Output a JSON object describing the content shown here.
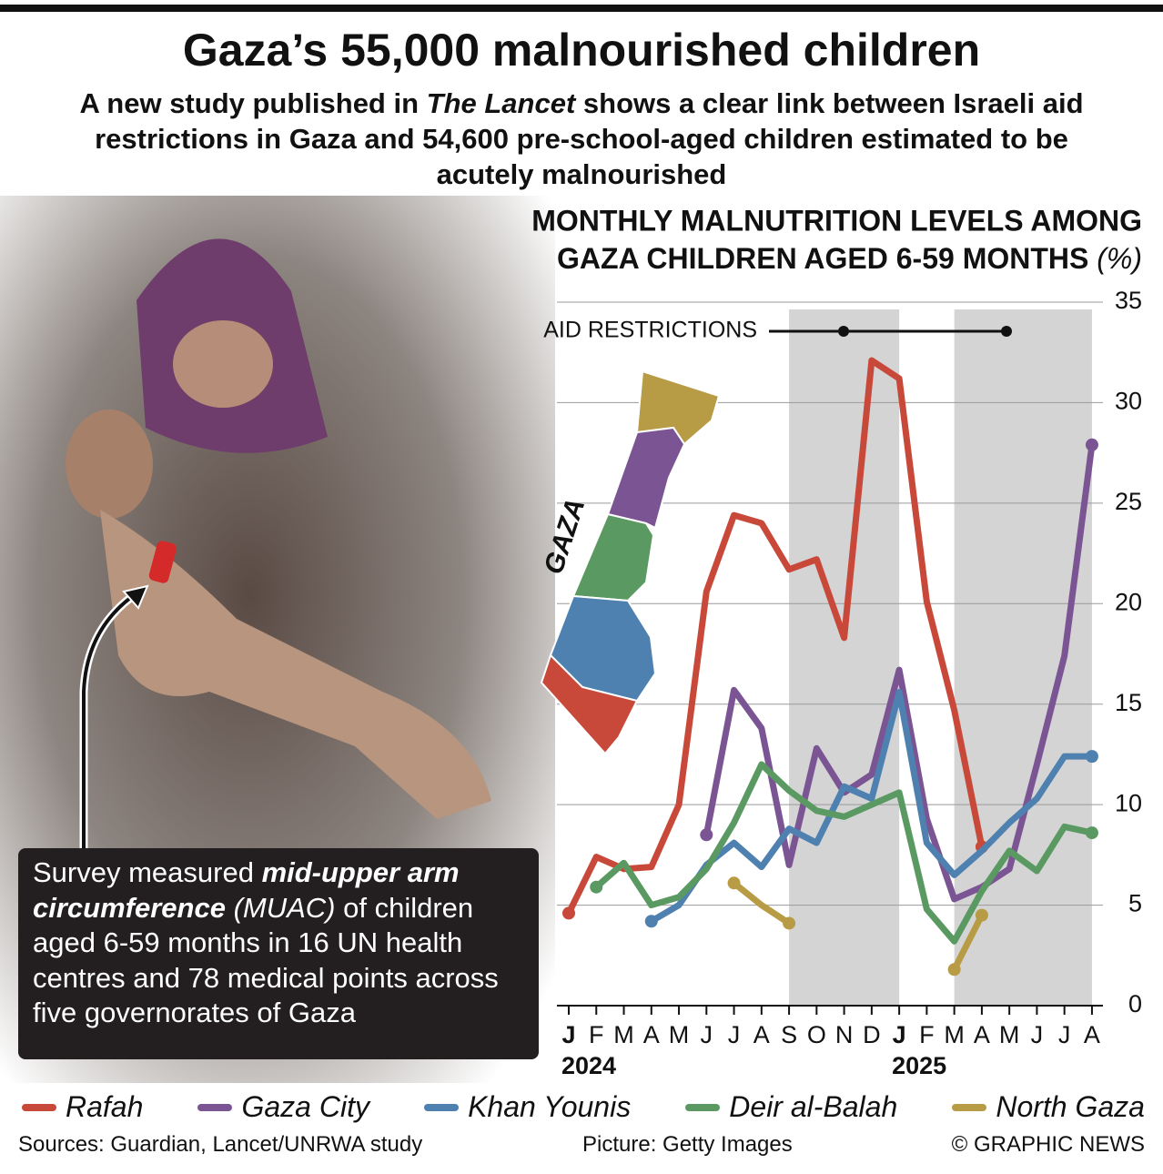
{
  "header": {
    "title": "Gaza’s 55,000 malnourished children",
    "subtitle": [
      "A new study published in ",
      "The Lancet",
      " shows a clear link between Israeli aid restrictions in Gaza and 54,600 pre-school-aged children estimated to be acutely malnourished"
    ]
  },
  "caption": [
    "Survey measured ",
    "mid-upper arm circumference",
    " (MUAC)",
    " of children aged 6-59 months in 16 UN health centres and 78 medical points across five governorates of Gaza"
  ],
  "map_label": "GAZA",
  "chart_data": {
    "type": "line",
    "title": [
      "MONTHLY MALNUTRITION LEVELS AMONG",
      "GAZA CHILDREN AGED 6-59 MONTHS"
    ],
    "unit": "(%)",
    "annotation": "AID RESTRICTIONS",
    "shaded_ranges": [
      [
        8,
        12
      ],
      [
        14,
        19
      ]
    ],
    "categories": [
      "J",
      "F",
      "M",
      "A",
      "M",
      "J",
      "J",
      "A",
      "S",
      "O",
      "N",
      "D",
      "J",
      "F",
      "M",
      "A",
      "M",
      "J",
      "J",
      "A"
    ],
    "year_labels": [
      {
        "value": 0,
        "label": "2024"
      },
      {
        "value": 12,
        "label": "2025"
      }
    ],
    "ylim": [
      0,
      35
    ],
    "yticks": [
      0,
      5,
      10,
      15,
      20,
      25,
      30,
      35
    ],
    "grid": true,
    "series": [
      {
        "name": "Rafah",
        "color": "#c8493a",
        "values": [
          4.6,
          7.4,
          6.8,
          6.9,
          10.0,
          20.6,
          24.4,
          24.0,
          21.7,
          22.2,
          18.3,
          32.1,
          31.2,
          20.1,
          14.7,
          7.9,
          null,
          null,
          null,
          null
        ]
      },
      {
        "name": "Gaza City",
        "color": "#7b5493",
        "values": [
          null,
          null,
          null,
          null,
          null,
          8.5,
          15.7,
          13.8,
          7.0,
          12.8,
          10.6,
          11.5,
          16.7,
          9.3,
          5.3,
          5.9,
          6.8,
          12.0,
          17.4,
          27.9
        ]
      },
      {
        "name": "Khan Younis",
        "color": "#4f81b0",
        "values": [
          null,
          null,
          null,
          4.2,
          5.0,
          7.0,
          8.1,
          6.9,
          8.8,
          8.1,
          10.9,
          10.3,
          15.6,
          8.1,
          6.5,
          7.7,
          9.1,
          10.3,
          12.4,
          12.4
        ]
      },
      {
        "name": "Deir al-Balah",
        "color": "#5a9a62",
        "values": [
          null,
          5.9,
          7.1,
          5.0,
          5.4,
          6.8,
          9.1,
          12.0,
          10.7,
          9.7,
          9.4,
          10.0,
          10.6,
          4.8,
          3.2,
          5.7,
          7.7,
          6.7,
          8.9,
          8.6
        ]
      },
      {
        "name": "North Gaza",
        "color": "#b89b45",
        "values": [
          null,
          null,
          null,
          null,
          null,
          null,
          6.1,
          5.0,
          4.1,
          null,
          null,
          null,
          null,
          null,
          1.8,
          4.5,
          null,
          null,
          null,
          null
        ]
      }
    ]
  },
  "footer": {
    "sources": "Sources: Guardian, Lancet/UNRWA study",
    "picture": "Picture: Getty Images",
    "credit": "© GRAPHIC NEWS"
  }
}
